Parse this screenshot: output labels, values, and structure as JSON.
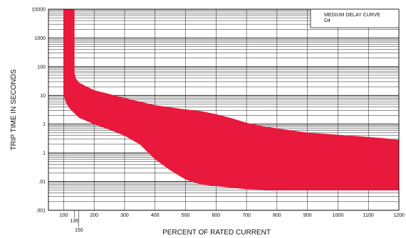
{
  "chart_data": {
    "type": "area",
    "title": "",
    "xlabel": "PERCENT OF RATED CURRENT",
    "ylabel": "TRIP TIME IN SECONDS",
    "xlim": [
      50,
      1200
    ],
    "ylim": [
      0.001,
      10000
    ],
    "yscale": "log",
    "grid": true,
    "legend_position": "top-right",
    "legend_lines": [
      "MEDIUM DELAY CURVE",
      "D4"
    ],
    "x_ticks": [
      100,
      200,
      300,
      400,
      500,
      600,
      700,
      800,
      900,
      1000,
      1100,
      1200
    ],
    "x_extra_ticks": [
      135,
      150
    ],
    "y_ticks": [
      0.001,
      0.01,
      0.1,
      1,
      10,
      100,
      1000,
      10000
    ],
    "y_tick_labels": [
      ".001",
      ".01",
      ".1",
      "1",
      "10",
      "100",
      "1000",
      "10000"
    ],
    "band_color": "#e8193c",
    "series": [
      {
        "role": "upper",
        "x": [
          135,
          135,
          140,
          150,
          175,
          200,
          250,
          300,
          350,
          400,
          450,
          500,
          550,
          600,
          650,
          700,
          750,
          800,
          900,
          1000,
          1100,
          1150,
          1200
        ],
        "y": [
          10000,
          60,
          38,
          28,
          20,
          15,
          11,
          8,
          6,
          4.5,
          3.8,
          3.2,
          2.8,
          2.2,
          1.6,
          1.1,
          0.85,
          0.7,
          0.5,
          0.42,
          0.35,
          0.32,
          0.28
        ]
      },
      {
        "role": "lower",
        "x": [
          100,
          100,
          105,
          110,
          120,
          150,
          200,
          250,
          300,
          350,
          400,
          450,
          500,
          550,
          600,
          700,
          800,
          900,
          1000,
          1100,
          1200
        ],
        "y": [
          10000,
          10,
          7,
          5,
          3.5,
          1.7,
          1.0,
          0.65,
          0.4,
          0.2,
          0.06,
          0.025,
          0.012,
          0.008,
          0.007,
          0.0055,
          0.005,
          0.005,
          0.005,
          0.005,
          0.005
        ]
      }
    ]
  }
}
